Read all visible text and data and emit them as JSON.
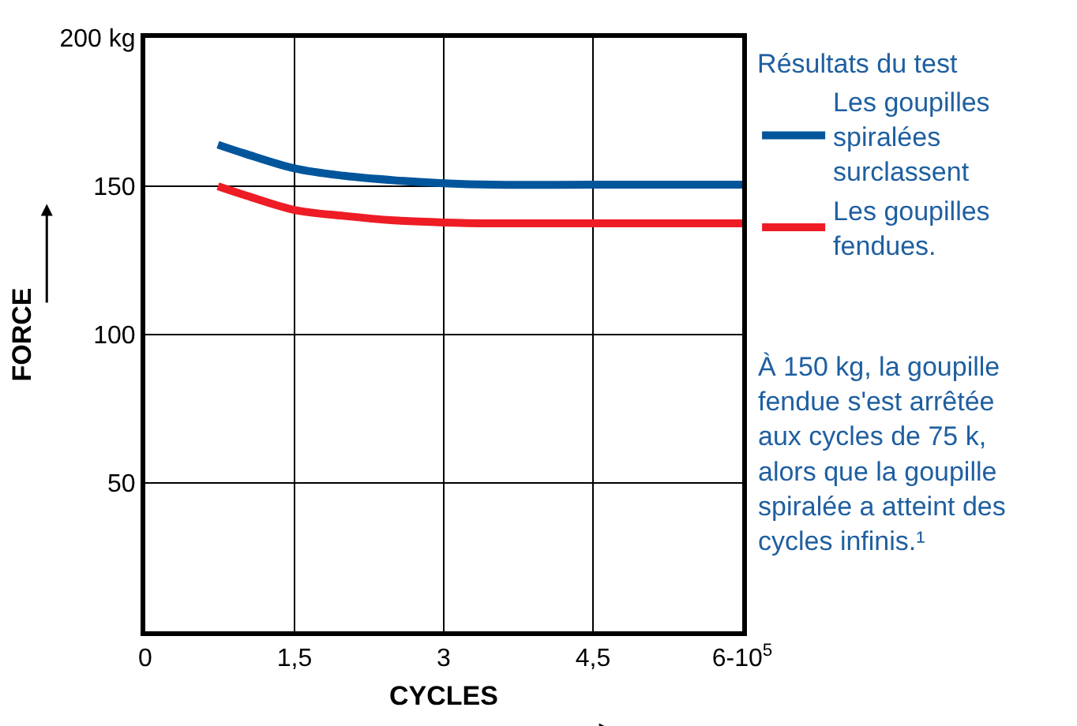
{
  "chart_data": {
    "type": "line",
    "xlabel": "CYCLES",
    "ylabel": "FORCE",
    "legend_title": "Résultats du test",
    "xlim": [
      0,
      6
    ],
    "xticks": [
      0,
      {
        "value": 1.5,
        "label": "1,5"
      },
      3,
      {
        "value": 4.5,
        "label": "4,5"
      },
      {
        "value": 6,
        "label": "6-10$^{5}$"
      }
    ],
    "ylim": [
      0,
      200
    ],
    "yticks": [
      50,
      100,
      150,
      {
        "value": 200,
        "label": "200 kg"
      }
    ],
    "grid": true,
    "legend": "right",
    "marker": "none",
    "line_style": "solid",
    "series": [
      {
        "name": "Les goupilles spiralées surclassent",
        "color": "#00559b",
        "x": [
          0.73,
          1.0,
          1.5,
          2.0,
          2.5,
          3.0,
          3.5,
          4.5,
          6.0
        ],
        "values": [
          164,
          161,
          156,
          153.5,
          152,
          151,
          150.5,
          150.5,
          150.5
        ]
      },
      {
        "name": "Les goupilles fendues.",
        "color": "#ee1c25",
        "x": [
          0.73,
          1.0,
          1.5,
          2.0,
          2.5,
          3.0,
          3.5,
          4.5,
          6.0
        ],
        "values": [
          150,
          147,
          142,
          140,
          138.5,
          137.8,
          137.5,
          137.5,
          137.5
        ]
      }
    ],
    "annotations": [
      "À 150 kg, la goupille fendue s'est arrêtée aux cycles de 75 k, alors que la goupille spiralée a atteint des cycles infinis.¹"
    ]
  }
}
